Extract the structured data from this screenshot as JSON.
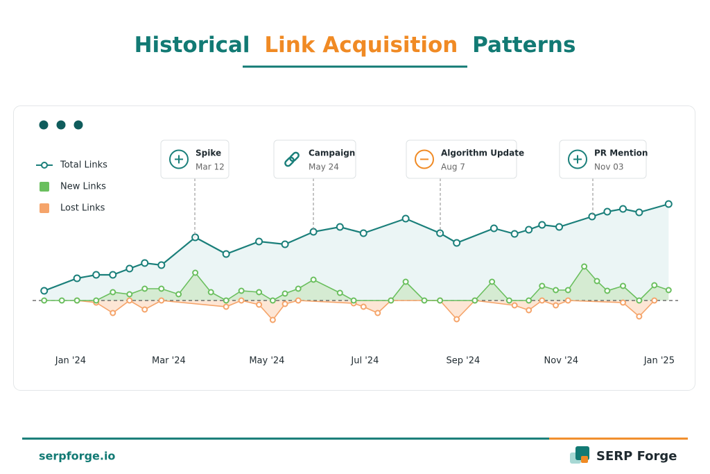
{
  "chart_data": {
    "type": "line",
    "title_parts": [
      "Historical",
      "Link Acquisition",
      "Patterns"
    ],
    "xlim": [
      -0.55,
      12.2
    ],
    "ylim": [
      -40,
      160
    ],
    "xticks": [
      {
        "value": 0,
        "label": "Jan '24"
      },
      {
        "value": 2,
        "label": "Mar '24"
      },
      {
        "value": 4,
        "label": "May '24"
      },
      {
        "value": 6,
        "label": "Jul '24"
      },
      {
        "value": 8,
        "label": "Sep '24"
      },
      {
        "value": 10,
        "label": "Nov '24"
      },
      {
        "value": 12,
        "label": "Jan '25"
      }
    ],
    "series": [
      {
        "name": "Total Links",
        "color": "#1a7f7a",
        "x": [
          -0.54,
          0.13,
          0.52,
          0.86,
          1.2,
          1.51,
          1.85,
          2.54,
          3.17,
          3.84,
          4.37,
          4.95,
          5.49,
          5.97,
          6.83,
          7.53,
          7.87,
          8.63,
          9.05,
          9.34,
          9.61,
          9.96,
          10.63,
          10.94,
          11.26,
          11.59,
          12.19
        ],
        "values": [
          14,
          32,
          37,
          37,
          46,
          54,
          51,
          91,
          67,
          85,
          81,
          99,
          106,
          97,
          118,
          97,
          83,
          104,
          96,
          102,
          109,
          106,
          121,
          128,
          132,
          127,
          139
        ]
      },
      {
        "name": "New Links",
        "color": "#6abf5e",
        "x": [
          -0.54,
          -0.18,
          0.13,
          0.52,
          0.86,
          1.2,
          1.51,
          1.85,
          2.2,
          2.54,
          2.86,
          3.17,
          3.48,
          3.84,
          4.12,
          4.37,
          4.64,
          4.95,
          5.49,
          5.77,
          6.53,
          6.83,
          7.21,
          7.53,
          8.24,
          8.59,
          8.94,
          9.34,
          9.61,
          9.89,
          10.14,
          10.47,
          10.73,
          10.94,
          11.26,
          11.59,
          11.9,
          12.19
        ],
        "values": [
          0,
          0,
          0,
          0,
          12,
          9,
          17,
          17,
          9,
          40,
          12,
          0,
          14,
          12,
          0,
          10,
          17,
          30,
          11,
          0,
          0,
          27,
          0,
          0,
          0,
          27,
          0,
          0,
          21,
          15,
          15,
          49,
          28,
          14,
          21,
          0,
          22,
          15
        ]
      },
      {
        "name": "Lost Links",
        "color": "#f5a46a",
        "x": [
          0.13,
          0.52,
          0.86,
          1.2,
          1.51,
          1.85,
          3.17,
          3.48,
          3.84,
          4.12,
          4.37,
          4.64,
          5.77,
          5.97,
          6.26,
          6.53,
          7.53,
          7.87,
          8.24,
          9.05,
          9.34,
          9.61,
          9.89,
          10.14,
          11.26,
          11.59,
          11.9
        ],
        "values": [
          0,
          -3,
          -18,
          0,
          -13,
          0,
          -9,
          0,
          -6,
          -28,
          -5,
          0,
          -4,
          -9,
          -18,
          0,
          0,
          -27,
          0,
          -7,
          -14,
          0,
          -7,
          0,
          -3,
          -23,
          0
        ]
      }
    ],
    "annotations": [
      {
        "label": "Spike",
        "date": "Mar 12"
      },
      {
        "label": "Campaign",
        "date": "May 24"
      },
      {
        "label": "Algorithm Update",
        "date": "Aug 7"
      },
      {
        "label": "PR Mention",
        "date": "Nov 03"
      }
    ],
    "footer": {
      "site": "serpforge.io",
      "brand": "SERP Forge"
    }
  }
}
